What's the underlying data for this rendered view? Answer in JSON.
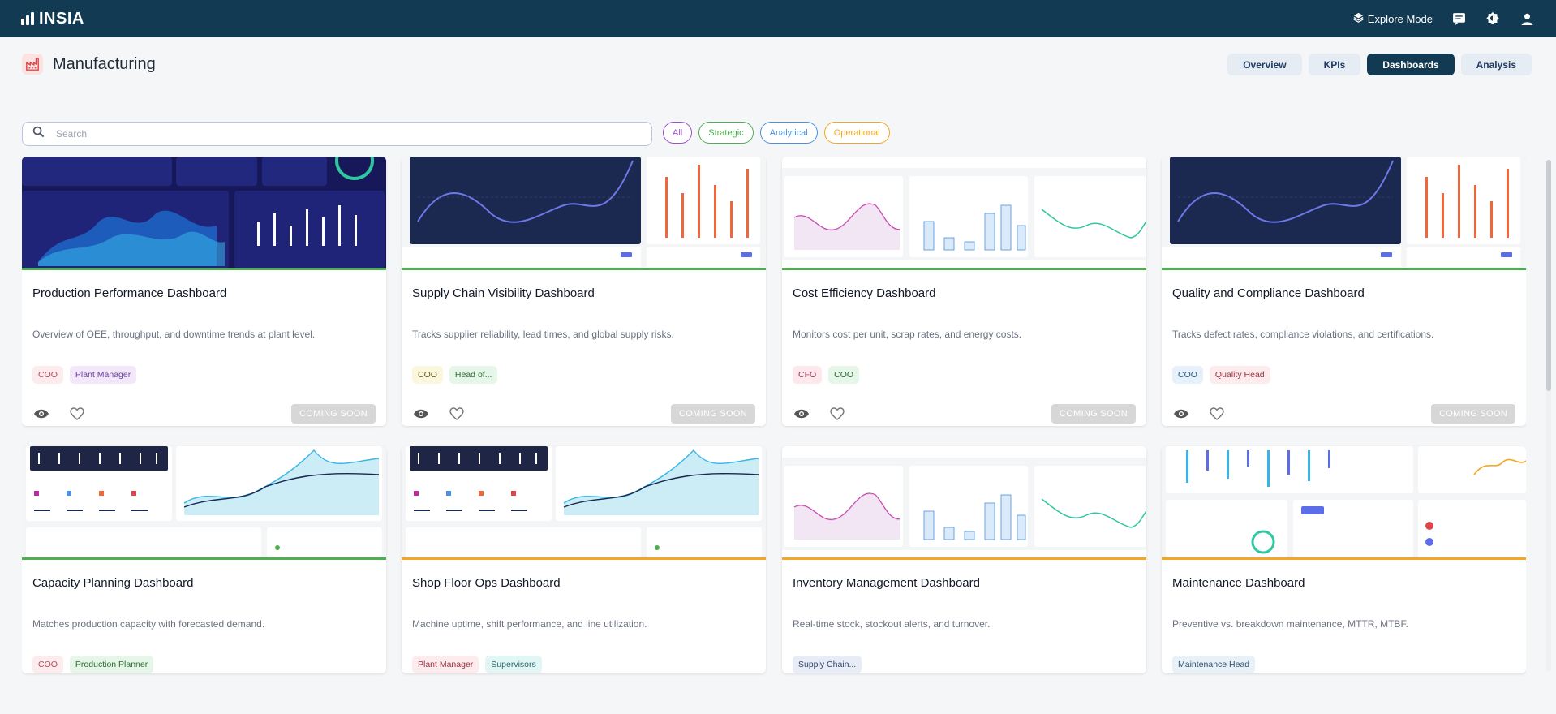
{
  "app": {
    "name": "INSIA"
  },
  "topbar": {
    "explore_label": "Explore Mode"
  },
  "page": {
    "title": "Manufacturing"
  },
  "tabs": [
    {
      "label": "Overview"
    },
    {
      "label": "KPIs"
    },
    {
      "label": "Dashboards"
    },
    {
      "label": "Analysis"
    }
  ],
  "search": {
    "placeholder": "Search"
  },
  "filters": [
    {
      "label": "All",
      "color": "#9c4dcc"
    },
    {
      "label": "Strategic",
      "color": "#4caf50"
    },
    {
      "label": "Analytical",
      "color": "#4a90e2"
    },
    {
      "label": "Operational",
      "color": "#f5a623"
    }
  ],
  "coming_soon_label": "COMING SOON",
  "cards": [
    {
      "title": "Production Performance Dashboard",
      "description": "Overview of OEE, throughput, and downtime trends at plant level.",
      "tags": [
        {
          "label": "COO",
          "bg": "#fdecee",
          "fg": "#b94a5a"
        },
        {
          "label": "Plant Manager",
          "bg": "#f3e8f9",
          "fg": "#6b3fa0"
        }
      ]
    },
    {
      "title": "Supply Chain Visibility Dashboard",
      "description": "Tracks supplier reliability, lead times, and global supply risks.",
      "tags": [
        {
          "label": "COO",
          "bg": "#fbf7df",
          "fg": "#6b5e1f"
        },
        {
          "label": "Head of...",
          "bg": "#e6f6e8",
          "fg": "#2e6b34"
        }
      ]
    },
    {
      "title": "Cost Efficiency Dashboard",
      "description": "Monitors cost per unit, scrap rates, and energy costs.",
      "tags": [
        {
          "label": "CFO",
          "bg": "#fde8ee",
          "fg": "#a23a58"
        },
        {
          "label": "COO",
          "bg": "#e6f6e8",
          "fg": "#2e6b34"
        }
      ]
    },
    {
      "title": "Quality and Compliance Dashboard",
      "description": "Tracks defect rates, compliance violations, and certifications.",
      "tags": [
        {
          "label": "COO",
          "bg": "#e6f1fb",
          "fg": "#2a5a8a"
        },
        {
          "label": "Quality Head",
          "bg": "#fdecee",
          "fg": "#9b3040"
        }
      ]
    },
    {
      "title": "Capacity Planning Dashboard",
      "description": "Matches production capacity with forecasted demand.",
      "tags": [
        {
          "label": "COO",
          "bg": "#fdecee",
          "fg": "#b94a5a"
        },
        {
          "label": "Production Planner",
          "bg": "#e6f6e8",
          "fg": "#2e6b34"
        }
      ]
    },
    {
      "title": "Shop Floor Ops Dashboard",
      "description": "Machine uptime, shift performance, and line utilization.",
      "tags": [
        {
          "label": "Plant Manager",
          "bg": "#fdecee",
          "fg": "#9b3040"
        },
        {
          "label": "Supervisors",
          "bg": "#e3f6f6",
          "fg": "#2a6b6b"
        }
      ]
    },
    {
      "title": "Inventory Management Dashboard",
      "description": "Real-time stock, stockout alerts, and turnover.",
      "tags": [
        {
          "label": "Supply Chain...",
          "bg": "#e8ecf6",
          "fg": "#34456b"
        }
      ]
    },
    {
      "title": "Maintenance Dashboard",
      "description": "Preventive vs. breakdown maintenance, MTTR, MTBF.",
      "tags": [
        {
          "label": "Maintenance Head",
          "bg": "#e8f0f8",
          "fg": "#34506b"
        }
      ]
    }
  ]
}
